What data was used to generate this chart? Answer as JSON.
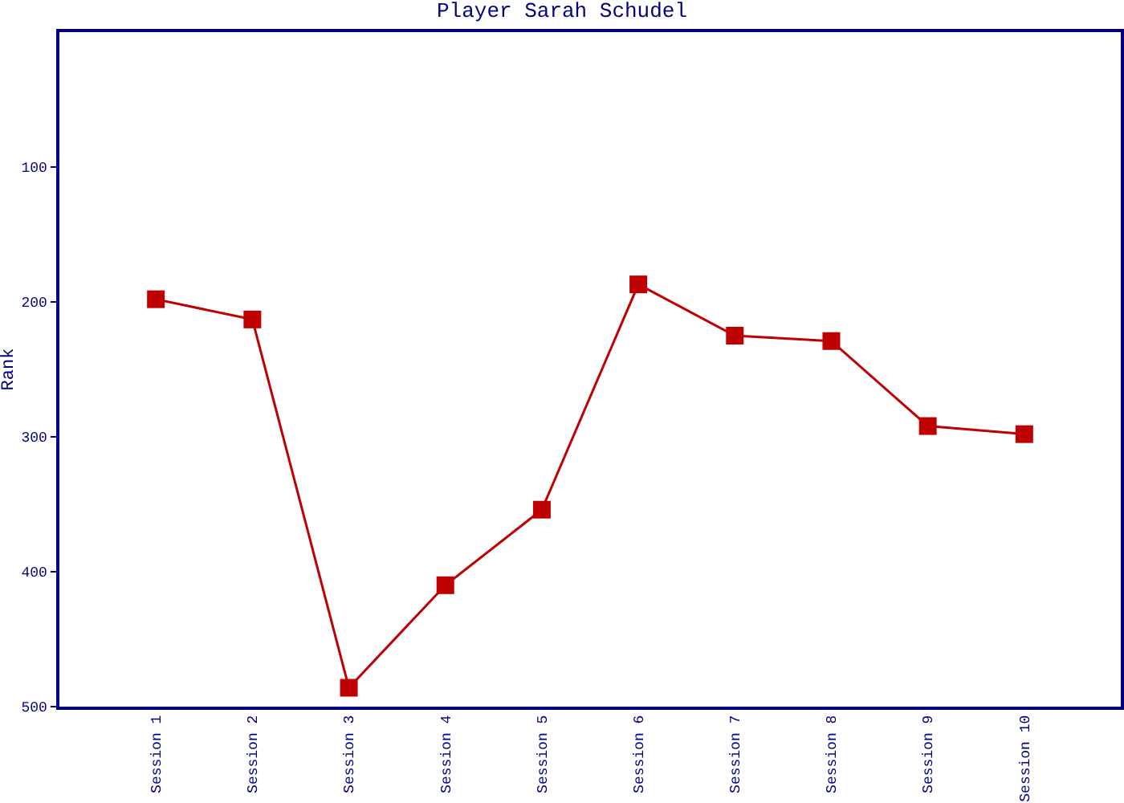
{
  "chart_data": {
    "type": "line",
    "title": "Player Sarah Schudel",
    "ylabel": "Rank",
    "categories": [
      "Session 1",
      "Session 2",
      "Session 3",
      "Session 4",
      "Session 5",
      "Session 6",
      "Session 7",
      "Session 8",
      "Session 9",
      "Session 10"
    ],
    "series": [
      {
        "color": "#bf0000",
        "values": [
          198,
          213,
          486,
          410,
          354,
          187,
          225,
          229,
          292,
          298
        ]
      }
    ],
    "ylim": [
      500,
      0
    ],
    "yticks": [
      100,
      200,
      300,
      400,
      500
    ],
    "grid": false,
    "marker": "square",
    "line_style": "solid"
  }
}
